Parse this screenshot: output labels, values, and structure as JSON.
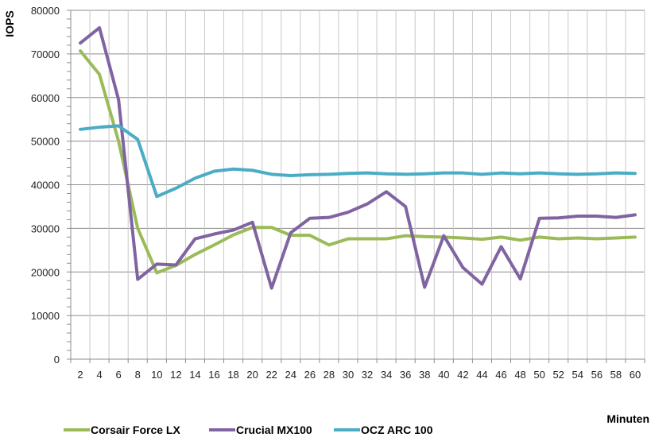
{
  "chart_data": {
    "type": "line",
    "xlabel": "Minuten",
    "ylabel": "IOPS",
    "ylim": [
      0,
      80000
    ],
    "yticks": [
      0,
      10000,
      20000,
      30000,
      40000,
      50000,
      60000,
      70000,
      80000
    ],
    "grid": true,
    "legend_position": "bottom",
    "x": [
      2,
      4,
      6,
      8,
      10,
      12,
      14,
      16,
      18,
      20,
      22,
      24,
      26,
      28,
      30,
      32,
      34,
      36,
      38,
      40,
      42,
      44,
      46,
      48,
      50,
      52,
      54,
      56,
      58,
      60
    ],
    "series": [
      {
        "name": "Corsair Force LX",
        "color": "#9BBB59",
        "values": [
          70700,
          65300,
          50000,
          30000,
          19800,
          21500,
          24000,
          26200,
          28500,
          30200,
          30200,
          28400,
          28400,
          26200,
          27600,
          27600,
          27600,
          28300,
          28100,
          28000,
          27800,
          27500,
          28000,
          27300,
          28000,
          27600,
          27800,
          27600,
          27800,
          28000
        ]
      },
      {
        "name": "Crucial MX100",
        "color": "#8064A2",
        "values": [
          72500,
          76000,
          59500,
          18300,
          21800,
          21600,
          27600,
          28700,
          29600,
          31400,
          16300,
          29000,
          32300,
          32500,
          33700,
          35600,
          38400,
          35000,
          16500,
          28300,
          21000,
          17200,
          25800,
          18400,
          32300,
          32400,
          32800,
          32800,
          32500,
          33100
        ]
      },
      {
        "name": "OCZ ARC 100",
        "color": "#4BACC6",
        "values": [
          52700,
          53200,
          53500,
          50400,
          37300,
          39200,
          41500,
          43100,
          43600,
          43300,
          42400,
          42100,
          42300,
          42400,
          42600,
          42700,
          42500,
          42400,
          42500,
          42700,
          42700,
          42400,
          42700,
          42500,
          42700,
          42500,
          42400,
          42500,
          42700,
          42600
        ]
      }
    ]
  }
}
